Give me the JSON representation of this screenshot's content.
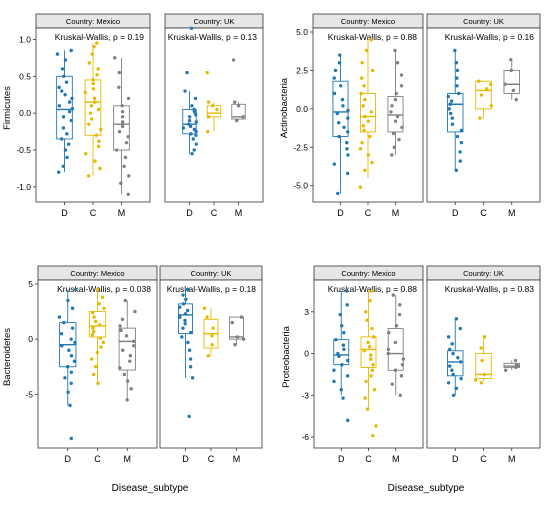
{
  "colors": {
    "D": "#1f77b4",
    "C": "#e6b800",
    "M": "#808080",
    "strip": "#e6e6e6",
    "frame": "#333333"
  },
  "chart_data": [
    {
      "type": "box",
      "ylabel": "Firmicutes",
      "xlabel": "",
      "yticks": [
        "-1.0",
        "-0.5",
        "0.0",
        "0.5",
        "1.0"
      ],
      "ytick_values": [
        -1.0,
        -0.5,
        0.0,
        0.5,
        1.0
      ],
      "ylim": [
        -1.15,
        1.1
      ],
      "panels": [
        {
          "strip": "Country: Mexico",
          "stat": "Kruskal-Wallis, p = 0.19",
          "categories": [
            "D",
            "C",
            "M"
          ],
          "boxes": [
            {
              "group": "D",
              "min": -0.8,
              "q1": -0.35,
              "median": 0.05,
              "q3": 0.5,
              "max": 0.85
            },
            {
              "group": "C",
              "min": -0.85,
              "q1": -0.3,
              "median": 0.15,
              "q3": 0.45,
              "max": 0.95
            },
            {
              "group": "M",
              "min": -1.1,
              "q1": -0.5,
              "median": -0.15,
              "q3": 0.1,
              "max": 0.75
            }
          ],
          "points": {
            "D": [
              0.85,
              0.8,
              0.72,
              0.6,
              0.5,
              0.42,
              0.35,
              0.3,
              0.25,
              0.2,
              0.15,
              0.1,
              0.06,
              0.02,
              -0.05,
              -0.1,
              -0.2,
              -0.28,
              -0.35,
              -0.42,
              -0.5,
              -0.6,
              -0.72,
              -0.8
            ],
            "C": [
              0.95,
              0.9,
              0.8,
              0.68,
              0.6,
              0.52,
              0.45,
              0.4,
              0.33,
              0.28,
              0.2,
              0.15,
              0.1,
              0.05,
              0.0,
              -0.08,
              -0.15,
              -0.22,
              -0.3,
              -0.38,
              -0.45,
              -0.55,
              -0.65,
              -0.75,
              -0.85
            ],
            "M": [
              0.75,
              0.55,
              0.35,
              0.2,
              0.1,
              0.02,
              -0.05,
              -0.12,
              -0.18,
              -0.25,
              -0.32,
              -0.4,
              -0.5,
              -0.6,
              -0.72,
              -0.85,
              -0.95,
              -1.1
            ]
          }
        },
        {
          "strip": "Country: UK",
          "stat": "Kruskal-Wallis, p = 0.13",
          "categories": [
            "D",
            "C",
            "M"
          ],
          "boxes": [
            {
              "group": "D",
              "min": -0.55,
              "q1": -0.28,
              "median": -0.15,
              "q3": 0.05,
              "max": 0.3
            },
            {
              "group": "C",
              "min": -0.25,
              "q1": -0.05,
              "median": 0.0,
              "q3": 0.1,
              "max": 0.15
            },
            {
              "group": "M",
              "min": -0.1,
              "q1": -0.08,
              "median": -0.05,
              "q3": 0.12,
              "max": 0.15
            }
          ],
          "points": {
            "D": [
              1.15,
              0.55,
              0.3,
              0.2,
              0.1,
              0.05,
              0.02,
              -0.02,
              -0.05,
              -0.1,
              -0.12,
              -0.15,
              -0.18,
              -0.2,
              -0.22,
              -0.25,
              -0.28,
              -0.3,
              -0.35,
              -0.42,
              -0.5,
              -0.55
            ],
            "C": [
              0.55,
              0.15,
              0.1,
              0.05,
              -0.05,
              -0.25
            ],
            "M": [
              0.72,
              0.15,
              0.1,
              -0.05,
              -0.1
            ]
          }
        }
      ]
    },
    {
      "type": "box",
      "ylabel": "Actinobacteria",
      "xlabel": "",
      "yticks": [
        "-5.0",
        "-2.5",
        "0.0",
        "2.5",
        "5.0"
      ],
      "ytick_values": [
        -5.0,
        -2.5,
        0.0,
        2.5,
        5.0
      ],
      "ylim": [
        -5.8,
        5.0
      ],
      "panels": [
        {
          "strip": "Country: Mexico",
          "stat": "Kruskal-Wallis, p = 0.88",
          "categories": [
            "D",
            "C",
            "M"
          ],
          "boxes": [
            {
              "group": "D",
              "min": -5.5,
              "q1": -1.8,
              "median": -0.2,
              "q3": 1.8,
              "max": 3.5
            },
            {
              "group": "C",
              "min": -4.5,
              "q1": -1.5,
              "median": -0.5,
              "q3": 1.0,
              "max": 4.5
            },
            {
              "group": "M",
              "min": -3.0,
              "q1": -1.5,
              "median": -0.4,
              "q3": 0.8,
              "max": 3.8
            }
          ],
          "points": {
            "D": [
              3.5,
              3.0,
              2.5,
              2.0,
              1.5,
              1.0,
              0.6,
              0.2,
              -0.1,
              -0.3,
              -0.6,
              -0.9,
              -1.2,
              -1.5,
              -1.8,
              -2.2,
              -2.6,
              -3.0,
              -3.6,
              -4.2,
              -5.5
            ],
            "C": [
              4.5,
              3.8,
              3.0,
              2.5,
              2.0,
              1.5,
              1.0,
              0.6,
              0.2,
              -0.2,
              -0.5,
              -0.8,
              -1.1,
              -1.4,
              -1.8,
              -2.2,
              -2.6,
              -3.0,
              -3.5,
              -4.0,
              -5.1
            ],
            "M": [
              3.8,
              3.0,
              2.2,
              1.5,
              1.0,
              0.6,
              0.2,
              -0.2,
              -0.5,
              -0.8,
              -1.2,
              -1.6,
              -2.0,
              -2.5,
              -3.0
            ]
          }
        },
        {
          "strip": "Country: UK",
          "stat": "Kruskal-Wallis, p = 0.16",
          "categories": [
            "D",
            "C",
            "M"
          ],
          "boxes": [
            {
              "group": "D",
              "min": -4.0,
              "q1": -1.5,
              "median": 0.3,
              "q3": 1.0,
              "max": 3.8
            },
            {
              "group": "C",
              "min": -0.6,
              "q1": 0.0,
              "median": 1.2,
              "q3": 1.8,
              "max": 1.8
            },
            {
              "group": "M",
              "min": 0.6,
              "q1": 1.0,
              "median": 1.6,
              "q3": 2.5,
              "max": 3.2
            }
          ],
          "points": {
            "D": [
              3.8,
              3.0,
              2.5,
              2.0,
              1.5,
              1.0,
              0.8,
              0.5,
              0.3,
              0.0,
              -0.3,
              -0.6,
              -1.0,
              -1.4,
              -1.8,
              -2.2,
              -2.8,
              -3.4,
              -4.0
            ],
            "C": [
              1.8,
              1.6,
              1.3,
              0.9,
              0.2,
              -0.6
            ],
            "M": [
              3.2,
              2.5,
              1.6,
              1.2,
              0.6
            ]
          }
        }
      ]
    },
    {
      "type": "box",
      "ylabel": "Bacteroidetes",
      "xlabel": "Disease_subtype",
      "yticks": [
        "-5",
        "0",
        "5"
      ],
      "ytick_values": [
        -5,
        0,
        5
      ],
      "ylim": [
        -9.5,
        5.0
      ],
      "panels": [
        {
          "strip": "Country: Mexico",
          "stat": "Kruskal-Wallis, p = 0.038",
          "categories": [
            "D",
            "C",
            "M"
          ],
          "boxes": [
            {
              "group": "D",
              "min": -6.0,
              "q1": -2.5,
              "median": -0.5,
              "q3": 1.5,
              "max": 4.5
            },
            {
              "group": "C",
              "min": -4.0,
              "q1": 0.2,
              "median": 1.2,
              "q3": 2.5,
              "max": 4.5
            },
            {
              "group": "M",
              "min": -5.5,
              "q1": -2.8,
              "median": -0.2,
              "q3": 1.0,
              "max": 3.5
            }
          ],
          "points": {
            "D": [
              4.5,
              3.5,
              2.8,
              2.0,
              1.5,
              1.0,
              0.5,
              0.0,
              -0.3,
              -0.6,
              -1.0,
              -1.5,
              -2.0,
              -2.5,
              -3.0,
              -3.5,
              -4.0,
              -4.8,
              -6.0,
              -9.0
            ],
            "C": [
              4.5,
              3.8,
              3.2,
              2.8,
              2.4,
              2.0,
              1.6,
              1.3,
              1.0,
              0.7,
              0.4,
              0.1,
              -0.3,
              -0.7,
              -1.2,
              -1.8,
              -2.5,
              -3.2,
              -4.0
            ],
            "M": [
              3.5,
              2.5,
              1.8,
              1.2,
              0.8,
              0.3,
              -0.2,
              -0.6,
              -1.0,
              -1.5,
              -2.0,
              -2.6,
              -3.2,
              -3.8,
              -4.5,
              -5.5
            ]
          }
        },
        {
          "strip": "Country: UK",
          "stat": "Kruskal-Wallis, p = 0.18",
          "categories": [
            "D",
            "C",
            "M"
          ],
          "boxes": [
            {
              "group": "D",
              "min": -3.5,
              "q1": 0.5,
              "median": 2.2,
              "q3": 3.2,
              "max": 4.5
            },
            {
              "group": "C",
              "min": -1.5,
              "q1": -0.8,
              "median": 0.5,
              "q3": 1.8,
              "max": 2.8
            },
            {
              "group": "M",
              "min": -0.5,
              "q1": 0.0,
              "median": 0.2,
              "q3": 2.0,
              "max": 2.0
            }
          ],
          "points": {
            "D": [
              4.5,
              4.0,
              3.6,
              3.2,
              2.9,
              2.6,
              2.3,
              2.0,
              1.7,
              1.4,
              1.0,
              0.6,
              0.2,
              -0.3,
              -1.0,
              -1.8,
              -2.5,
              -3.5,
              -7.0
            ],
            "C": [
              2.8,
              2.0,
              1.0,
              0.3,
              -0.5,
              -1.5
            ],
            "M": [
              2.0,
              1.5,
              0.2,
              0.0,
              -0.5
            ]
          }
        }
      ]
    },
    {
      "type": "box",
      "ylabel": "Proteobacteria",
      "xlabel": "Disease_subtype",
      "yticks": [
        "-6",
        "-3",
        "0",
        "3"
      ],
      "ytick_values": [
        -6,
        -3,
        0,
        3
      ],
      "ylim": [
        -6.5,
        5.0
      ],
      "panels": [
        {
          "strip": "Country: Mexico",
          "stat": "Kruskal-Wallis, p = 0.88",
          "categories": [
            "D",
            "C",
            "M"
          ],
          "boxes": [
            {
              "group": "D",
              "min": -3.0,
              "q1": -0.8,
              "median": -0.1,
              "q3": 1.0,
              "max": 4.5
            },
            {
              "group": "C",
              "min": -4.0,
              "q1": -1.0,
              "median": 0.3,
              "q3": 1.2,
              "max": 4.5
            },
            {
              "group": "M",
              "min": -3.0,
              "q1": -1.2,
              "median": 0.0,
              "q3": 1.8,
              "max": 4.2
            }
          ],
          "points": {
            "D": [
              4.5,
              3.5,
              2.8,
              2.0,
              1.5,
              1.0,
              0.6,
              0.3,
              0.0,
              -0.2,
              -0.5,
              -0.8,
              -1.2,
              -1.6,
              -2.0,
              -2.6,
              -3.2,
              -4.8
            ],
            "C": [
              4.5,
              3.8,
              3.0,
              2.4,
              1.8,
              1.2,
              0.8,
              0.5,
              0.2,
              -0.1,
              -0.4,
              -0.8,
              -1.2,
              -1.6,
              -2.0,
              -2.6,
              -3.2,
              -4.0,
              -5.2,
              -5.9
            ],
            "M": [
              4.2,
              3.5,
              2.8,
              2.0,
              1.5,
              0.8,
              0.3,
              0.0,
              -0.4,
              -0.8,
              -1.2,
              -1.6,
              -2.2,
              -3.0
            ]
          }
        },
        {
          "strip": "Country: UK",
          "stat": "Kruskal-Wallis, p = 0.83",
          "categories": [
            "D",
            "C",
            "M"
          ],
          "boxes": [
            {
              "group": "D",
              "min": -3.0,
              "q1": -1.6,
              "median": -0.6,
              "q3": 0.2,
              "max": 2.5
            },
            {
              "group": "C",
              "min": -2.0,
              "q1": -1.8,
              "median": -1.5,
              "q3": 0.0,
              "max": 1.2
            },
            {
              "group": "M",
              "min": -1.2,
              "q1": -1.0,
              "median": -0.9,
              "q3": -0.7,
              "max": -0.5
            }
          ],
          "points": {
            "D": [
              2.5,
              1.8,
              1.2,
              0.7,
              0.3,
              0.0,
              -0.3,
              -0.6,
              -0.9,
              -1.2,
              -1.5,
              -1.8,
              -2.1,
              -2.5,
              -3.0
            ],
            "C": [
              1.2,
              0.4,
              -0.5,
              -1.5,
              -1.9,
              -2.1
            ],
            "M": [
              -0.5,
              -0.8,
              -0.9,
              -1.0,
              -1.2
            ]
          }
        }
      ]
    }
  ]
}
